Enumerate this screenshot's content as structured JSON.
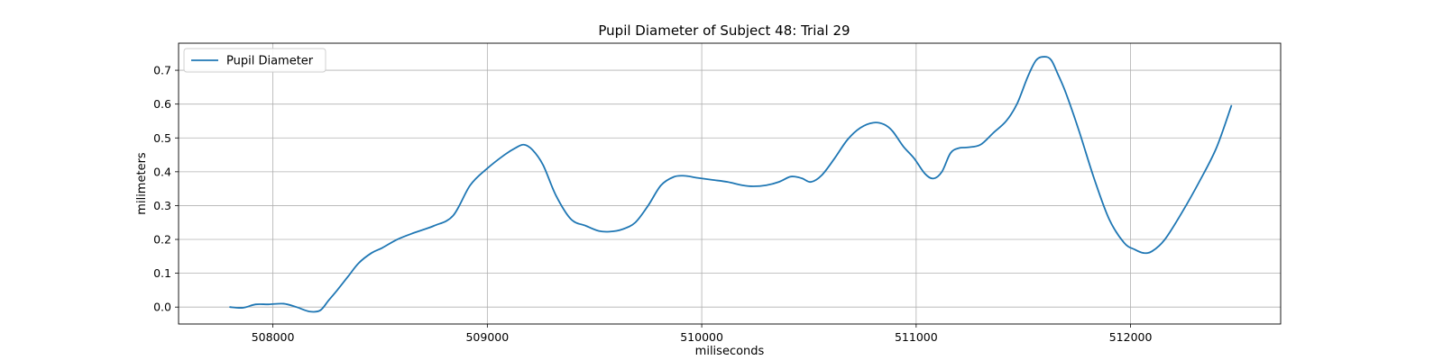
{
  "chart_data": {
    "type": "line",
    "title": "Pupil Diameter of Subject 48: Trial 29",
    "xlabel": "miliseconds",
    "ylabel": "milimeters",
    "xlim": [
      507560,
      512700
    ],
    "ylim": [
      -0.05,
      0.78
    ],
    "xticks": [
      508000,
      509000,
      510000,
      511000,
      512000
    ],
    "xtick_labels": [
      "508000",
      "509000",
      "510000",
      "511000",
      "512000"
    ],
    "yticks": [
      0.0,
      0.1,
      0.2,
      0.3,
      0.4,
      0.5,
      0.6,
      0.7
    ],
    "ytick_labels": [
      "0.0",
      "0.1",
      "0.2",
      "0.3",
      "0.4",
      "0.5",
      "0.6",
      "0.7"
    ],
    "grid": true,
    "legend": "upper-left",
    "series": [
      {
        "name": "Pupil Diameter",
        "color": "#1f77b4",
        "x": [
          507800,
          507860,
          507920,
          507980,
          508050,
          508110,
          508170,
          508220,
          508260,
          508300,
          508350,
          508400,
          508460,
          508510,
          508580,
          508660,
          508750,
          508840,
          508920,
          509000,
          509080,
          509130,
          509170,
          509210,
          509260,
          509320,
          509390,
          509460,
          509520,
          509570,
          509630,
          509690,
          509750,
          509810,
          509870,
          509920,
          509980,
          510050,
          510120,
          510190,
          510240,
          510300,
          510360,
          510410,
          510440,
          510470,
          510510,
          510560,
          510620,
          510680,
          510740,
          510800,
          510850,
          510890,
          510940,
          510990,
          511040,
          511080,
          511120,
          511160,
          511200,
          511240,
          511300,
          511360,
          511420,
          511470,
          511520,
          511560,
          511600,
          511630,
          511660,
          511700,
          511760,
          511830,
          511900,
          511970,
          512020,
          512060,
          512100,
          512160,
          512240,
          512320,
          512400,
          512470
        ],
        "y": [
          0.0,
          -0.002,
          0.008,
          0.008,
          0.01,
          0.0,
          -0.013,
          -0.01,
          0.02,
          0.05,
          0.09,
          0.13,
          0.16,
          0.175,
          0.2,
          0.22,
          0.24,
          0.27,
          0.36,
          0.41,
          0.45,
          0.47,
          0.48,
          0.465,
          0.42,
          0.33,
          0.26,
          0.24,
          0.225,
          0.223,
          0.23,
          0.25,
          0.3,
          0.36,
          0.385,
          0.388,
          0.382,
          0.376,
          0.37,
          0.36,
          0.357,
          0.36,
          0.37,
          0.385,
          0.385,
          0.38,
          0.37,
          0.39,
          0.44,
          0.495,
          0.53,
          0.545,
          0.54,
          0.52,
          0.475,
          0.44,
          0.395,
          0.38,
          0.4,
          0.455,
          0.47,
          0.472,
          0.48,
          0.515,
          0.55,
          0.6,
          0.68,
          0.73,
          0.74,
          0.73,
          0.69,
          0.63,
          0.52,
          0.38,
          0.26,
          0.19,
          0.17,
          0.16,
          0.165,
          0.2,
          0.28,
          0.37,
          0.47,
          0.595
        ]
      }
    ]
  }
}
